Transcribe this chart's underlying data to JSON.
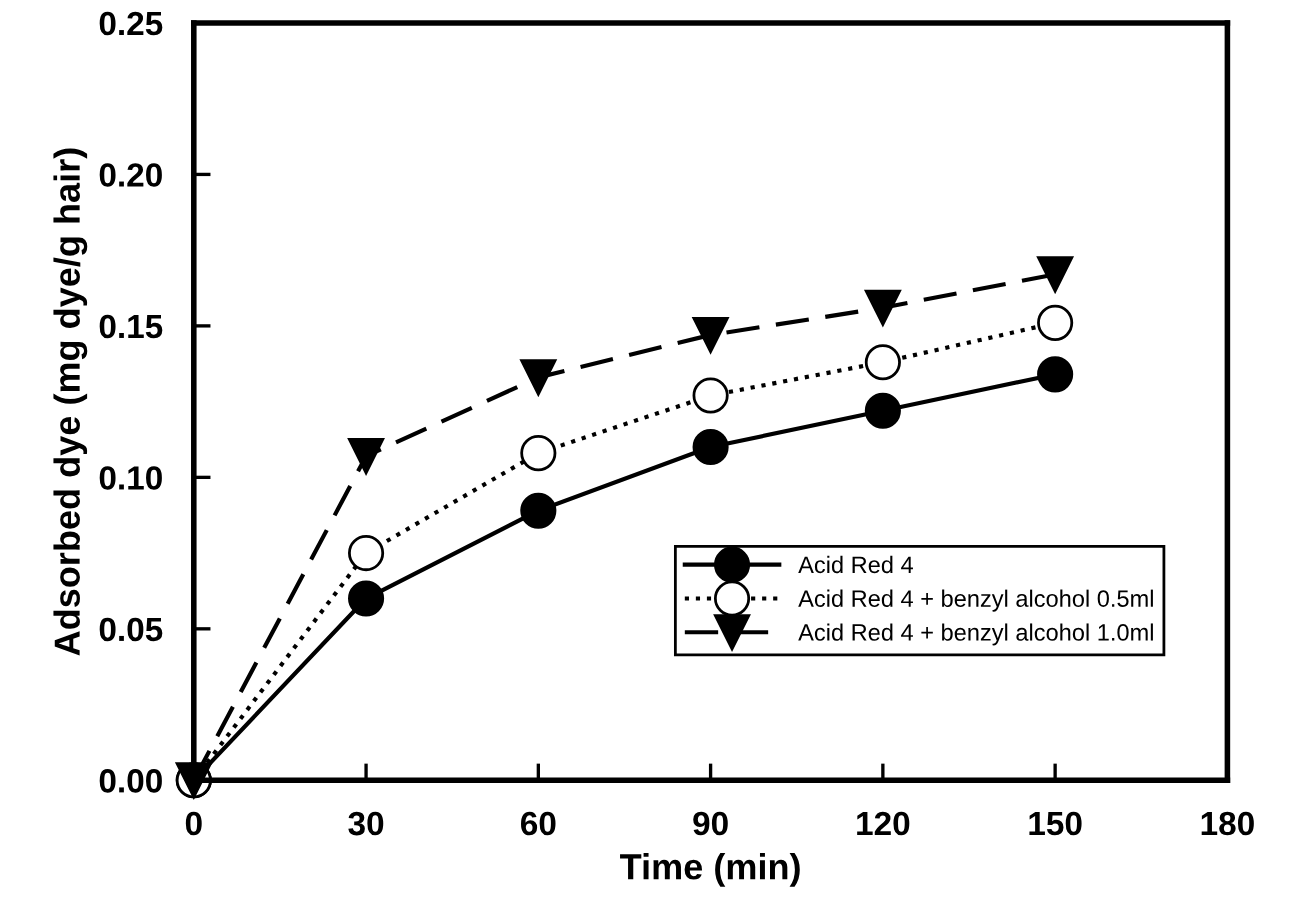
{
  "chart_data": {
    "type": "line",
    "xlabel": "Time (min)",
    "ylabel": "Adsorbed dye (mg dye/g hair)",
    "x": [
      0,
      30,
      60,
      90,
      120,
      150
    ],
    "series": [
      {
        "name": "Acid Red 4",
        "color": "#000000",
        "marker": "circle",
        "line_style": "solid",
        "values": [
          0,
          0.06,
          0.089,
          0.11,
          0.122,
          0.134
        ]
      },
      {
        "name": "Acid Red 4 + benzyl alcohol 0.5ml",
        "color": "#ffffff",
        "marker": "circle",
        "line_style": "dotted",
        "values": [
          0,
          0.075,
          0.108,
          0.127,
          0.138,
          0.151
        ]
      },
      {
        "name": "Acid Red 4 + benzyl alcohol 1.0ml",
        "color": "#000000",
        "marker": "triangle",
        "line_style": "dashed",
        "values": [
          0,
          0.107,
          0.133,
          0.147,
          0.156,
          0.167
        ]
      }
    ],
    "xlim": [
      0,
      180
    ],
    "xticks": [
      0,
      30,
      60,
      90,
      120,
      150,
      180
    ],
    "ylim": [
      0,
      0.25
    ],
    "yticks": [
      {
        "value": 0,
        "label": "0.00"
      },
      {
        "value": 0.05,
        "label": "0.05"
      },
      {
        "value": 0.1,
        "label": "0.10"
      },
      {
        "value": 0.15,
        "label": "0.15"
      },
      {
        "value": 0.2,
        "label": "0.20"
      },
      {
        "value": 0.25,
        "label": "0.25"
      }
    ],
    "grid": false,
    "legend": "bottom right"
  }
}
